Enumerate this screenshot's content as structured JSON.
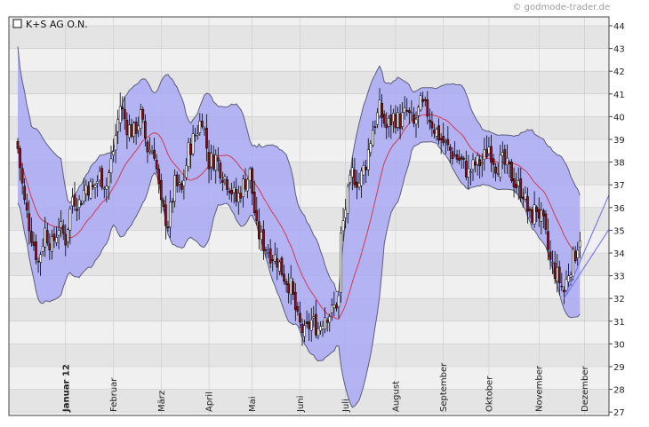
{
  "watermark": "© godmode-trader.de",
  "legend_icon": "square-outline-icon",
  "colors": {
    "band_fill": "#a9a9f5",
    "band_edge": "#5d5d7a",
    "ma_line": "#d0435e",
    "up_candle": "#ffffff",
    "down_candle": "#8b0e12",
    "wick": "#000000",
    "trend_line": "#7b7bf0",
    "grid": "#c9c9c9",
    "bg_band_a": "#f0f0f0",
    "bg_band_b": "#e4e4e4"
  },
  "chart_data": {
    "type": "candlestick",
    "title": "K+S AG O.N.",
    "xlabel": "",
    "ylabel": "",
    "ylim": [
      27,
      44
    ],
    "y_ticks": [
      27,
      28,
      29,
      30,
      31,
      32,
      33,
      34,
      35,
      36,
      37,
      38,
      39,
      40,
      41,
      42,
      43,
      44
    ],
    "x_range": [
      0,
      247
    ],
    "months": [
      {
        "label": "Januar 12",
        "x": 21,
        "bold": true
      },
      {
        "label": "Februar",
        "x": 42,
        "bold": false
      },
      {
        "label": "März",
        "x": 63,
        "bold": false
      },
      {
        "label": "April",
        "x": 84,
        "bold": false
      },
      {
        "label": "Mai",
        "x": 103,
        "bold": false
      },
      {
        "label": "Juni",
        "x": 124,
        "bold": false
      },
      {
        "label": "Juli",
        "x": 144,
        "bold": false
      },
      {
        "label": "August",
        "x": 166,
        "bold": false
      },
      {
        "label": "September",
        "x": 187,
        "bold": false
      },
      {
        "label": "Oktober",
        "x": 207,
        "bold": false
      },
      {
        "label": "November",
        "x": 229,
        "bold": false
      },
      {
        "label": "Dezember",
        "x": 249,
        "bold": false
      }
    ],
    "close_points": [
      [
        0,
        38.6
      ],
      [
        3,
        36.2
      ],
      [
        6,
        34.8
      ],
      [
        9,
        33.6
      ],
      [
        12,
        35.0
      ],
      [
        15,
        34.3
      ],
      [
        18,
        35.2
      ],
      [
        21,
        34.6
      ],
      [
        24,
        36.5
      ],
      [
        27,
        36.2
      ],
      [
        30,
        37.0
      ],
      [
        33,
        36.8
      ],
      [
        36,
        37.4
      ],
      [
        39,
        37.0
      ],
      [
        42,
        38.5
      ],
      [
        45,
        40.5
      ],
      [
        48,
        39.6
      ],
      [
        51,
        39.3
      ],
      [
        54,
        40.0
      ],
      [
        57,
        38.6
      ],
      [
        60,
        38.5
      ],
      [
        63,
        36.0
      ],
      [
        66,
        35.3
      ],
      [
        69,
        37.0
      ],
      [
        72,
        36.7
      ],
      [
        75,
        38.5
      ],
      [
        78,
        39.2
      ],
      [
        81,
        40.0
      ],
      [
        84,
        38.0
      ],
      [
        87,
        38.2
      ],
      [
        90,
        37.5
      ],
      [
        93,
        37.0
      ],
      [
        96,
        36.3
      ],
      [
        99,
        37.0
      ],
      [
        102,
        37.5
      ],
      [
        105,
        35.0
      ],
      [
        108,
        34.4
      ],
      [
        111,
        34.0
      ],
      [
        114,
        33.7
      ],
      [
        117,
        33.0
      ],
      [
        120,
        32.5
      ],
      [
        123,
        31.0
      ],
      [
        126,
        30.4
      ],
      [
        129,
        31.0
      ],
      [
        132,
        30.7
      ],
      [
        135,
        31.3
      ],
      [
        138,
        31.4
      ],
      [
        141,
        32.0
      ],
      [
        142,
        34.7
      ],
      [
        144,
        36.0
      ],
      [
        147,
        37.5
      ],
      [
        150,
        37.1
      ],
      [
        153,
        38.0
      ],
      [
        156,
        39.5
      ],
      [
        159,
        40.3
      ],
      [
        162,
        39.5
      ],
      [
        165,
        40.0
      ],
      [
        168,
        39.8
      ],
      [
        171,
        40.2
      ],
      [
        174,
        39.6
      ],
      [
        177,
        40.5
      ],
      [
        180,
        40.2
      ],
      [
        183,
        39.5
      ],
      [
        186,
        39.0
      ],
      [
        189,
        38.6
      ],
      [
        192,
        38.3
      ],
      [
        195,
        38.0
      ],
      [
        198,
        37.5
      ],
      [
        201,
        37.9
      ],
      [
        204,
        38.0
      ],
      [
        207,
        38.7
      ],
      [
        210,
        37.9
      ],
      [
        213,
        38.0
      ],
      [
        216,
        37.6
      ],
      [
        219,
        37.0
      ],
      [
        222,
        36.7
      ],
      [
        225,
        35.5
      ],
      [
        228,
        36.0
      ],
      [
        231,
        35.2
      ],
      [
        234,
        33.6
      ],
      [
        237,
        33.0
      ],
      [
        240,
        32.3
      ],
      [
        242,
        33.2
      ],
      [
        245,
        34.0
      ],
      [
        247,
        34.8
      ]
    ],
    "trend_channel": [
      {
        "from": [
          240,
          32.0
        ],
        "to": [
          266,
          38.0
        ]
      },
      {
        "from": [
          240,
          32.0
        ],
        "to": [
          266,
          36.0
        ]
      }
    ]
  }
}
